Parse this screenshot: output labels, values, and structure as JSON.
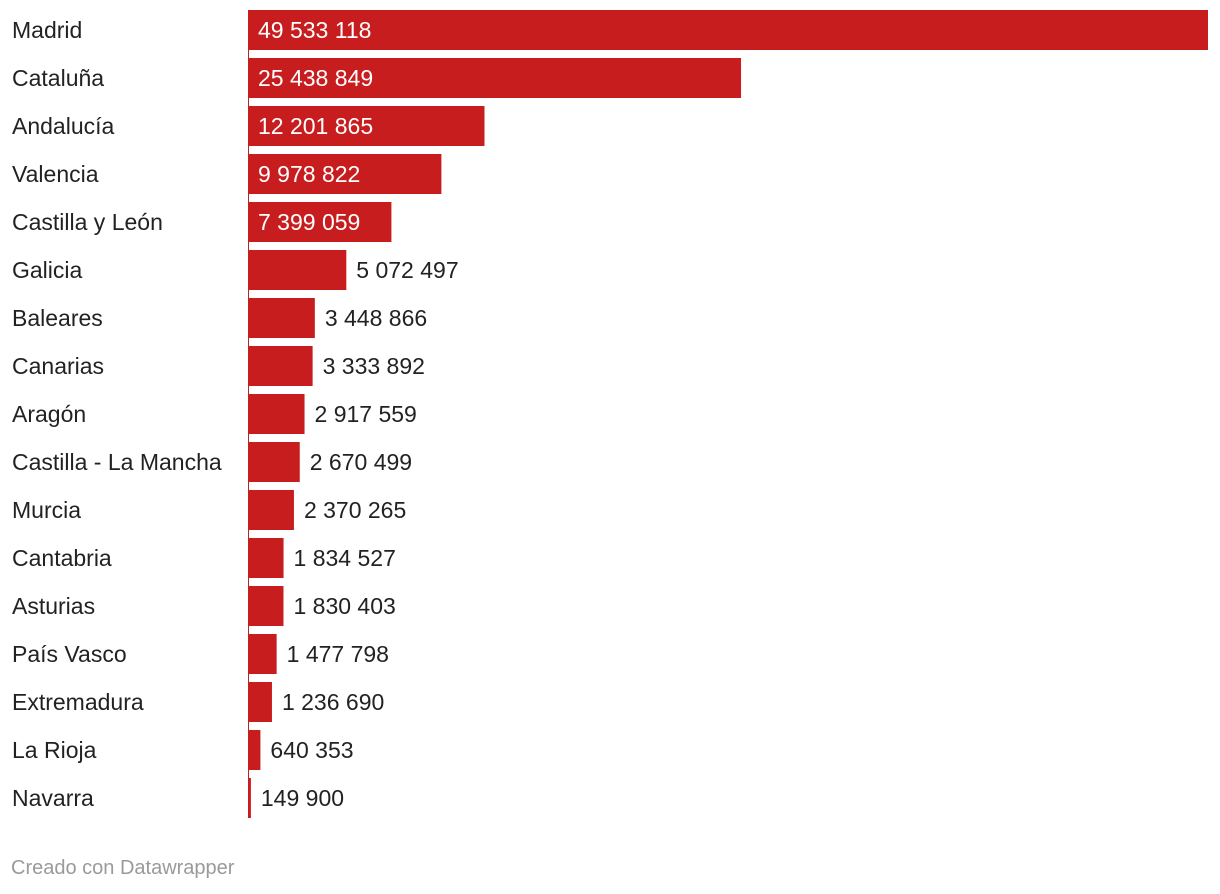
{
  "chart_data": {
    "type": "bar",
    "orientation": "horizontal",
    "categories": [
      "Madrid",
      "Cataluña",
      "Andalucía",
      "Valencia",
      "Castilla y León",
      "Galicia",
      "Baleares",
      "Canarias",
      "Aragón",
      "Castilla - La Mancha",
      "Murcia",
      "Cantabria",
      "Asturias",
      "País Vasco",
      "Extremadura",
      "La Rioja",
      "Navarra"
    ],
    "values": [
      49533118,
      25438849,
      12201865,
      9978822,
      7399059,
      5072497,
      3448866,
      3333892,
      2917559,
      2670499,
      2370265,
      1834527,
      1830403,
      1477798,
      1236690,
      640353,
      149900
    ],
    "value_labels": [
      "49 533 118",
      "25 438 849",
      "12 201 865",
      "9 978 822",
      "7 399 059",
      "5 072 497",
      "3 448 866",
      "3 333 892",
      "2 917 559",
      "2 670 499",
      "2 370 265",
      "1 834 527",
      "1 830 403",
      "1 477 798",
      "1 236 690",
      "640 353",
      "149 900"
    ],
    "xlim": [
      0,
      49533118
    ],
    "grid": false,
    "legend": "none",
    "colors": {
      "bar": "#c81d1e",
      "label_inside": "#ffffff",
      "label_outside": "#222222"
    }
  },
  "footer": {
    "credit": "Creado con Datawrapper"
  }
}
